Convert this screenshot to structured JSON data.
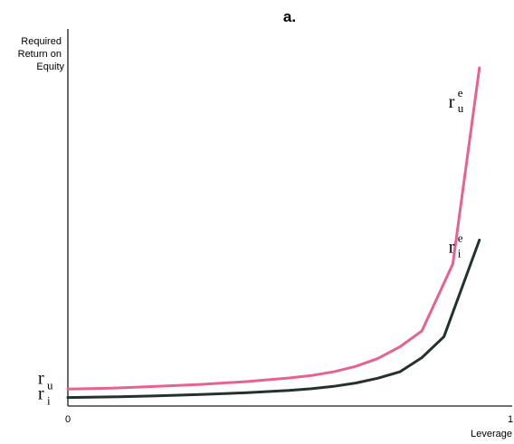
{
  "chart_data": {
    "type": "line",
    "panel_label": "a.",
    "ylabel_lines": [
      "Required",
      "Return on",
      "Equity"
    ],
    "xlabel": "Leverage",
    "xlim": [
      0,
      1
    ],
    "x_ticks": [
      "0",
      "1"
    ],
    "y_ticks": [
      {
        "base": "r",
        "sub": "u",
        "value": 0.05
      },
      {
        "base": "r",
        "sub": "i",
        "value": 0.025
      }
    ],
    "colors": {
      "pink": "#e8638c",
      "dark": "#24322e",
      "axis": "#1a1a1a"
    },
    "series": [
      {
        "label_base": "r",
        "label_sub": "u",
        "label_sup": "e",
        "color": "#e8638c",
        "x": [
          0.0,
          0.1,
          0.2,
          0.3,
          0.4,
          0.5,
          0.55,
          0.6,
          0.65,
          0.7,
          0.75,
          0.8,
          0.87,
          0.93
        ],
        "y": [
          0.05,
          0.053,
          0.058,
          0.064,
          0.072,
          0.083,
          0.09,
          0.101,
          0.117,
          0.14,
          0.175,
          0.222,
          0.42,
          1.0
        ]
      },
      {
        "label_base": "r",
        "label_sub": "i",
        "label_sup": "e",
        "color": "#24322e",
        "x": [
          0.0,
          0.1,
          0.2,
          0.3,
          0.4,
          0.5,
          0.55,
          0.6,
          0.65,
          0.7,
          0.75,
          0.8,
          0.85,
          0.93
        ],
        "y": [
          0.025,
          0.027,
          0.03,
          0.034,
          0.039,
          0.046,
          0.051,
          0.058,
          0.068,
          0.082,
          0.101,
          0.143,
          0.205,
          0.491
        ]
      }
    ]
  }
}
